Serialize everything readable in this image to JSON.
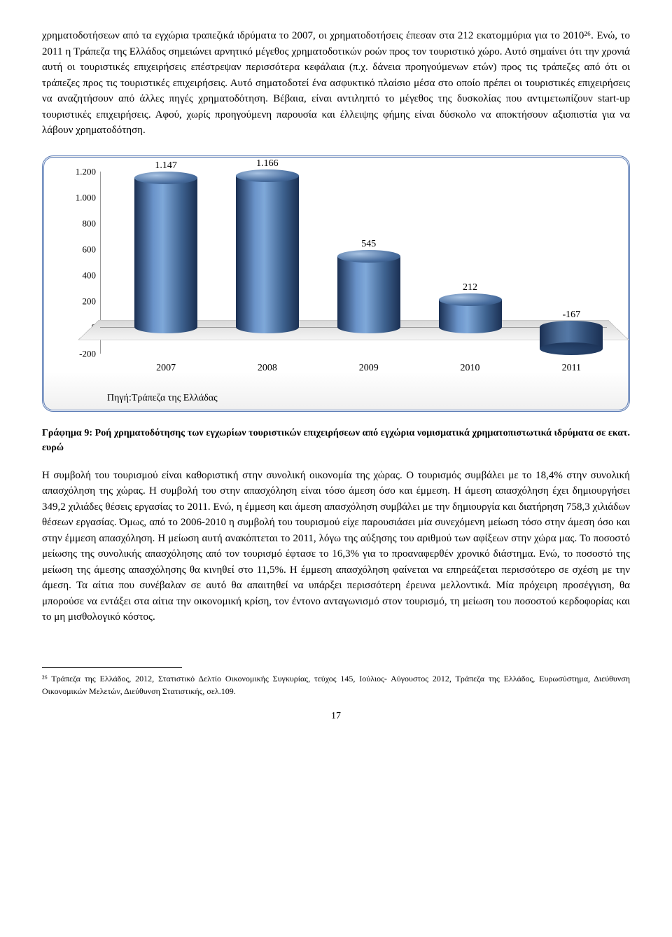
{
  "paragraph1": "χρηματοδοτήσεων από τα εγχώρια τραπεζικά ιδρύματα το 2007, οι χρηματοδοτήσεις έπεσαν στα 212 εκατομμύρια για το 2010²⁶. Ενώ, το 2011 η Τράπεζα της Ελλάδος σημειώνει αρνητικό μέγεθος χρηματοδοτικών ροών προς τον τουριστικό χώρο. Αυτό σημαίνει ότι την χρονιά αυτή οι τουριστικές επιχειρήσεις επέστρεψαν περισσότερα κεφάλαια (π.χ. δάνεια προηγούμενων ετών) προς τις τράπεζες από ότι οι τράπεζες προς τις τουριστικές επιχειρήσεις. Αυτό σηματοδοτεί ένα ασφυκτικό πλαίσιο μέσα στο οποίο πρέπει οι τουριστικές επιχειρήσεις να αναζητήσουν από άλλες πηγές χρηματοδότηση. Βέβαια, είναι αντιληπτό το μέγεθος της δυσκολίας που αντιμετωπίζουν start-up τουριστικές επιχειρήσεις. Αφού, χωρίς προηγούμενη παρουσία και έλλειψης φήμης είναι δύσκολο να αποκτήσουν αξιοπιστία για να λάβουν χρηματοδότηση.",
  "chart": {
    "y_ticks": [
      "1.200",
      "1.000",
      "800",
      "600",
      "400",
      "200",
      "0",
      "-200"
    ],
    "categories": [
      "2007",
      "2008",
      "2009",
      "2010",
      "2011"
    ],
    "values": [
      1147,
      1166,
      545,
      212,
      -167
    ],
    "labels": [
      "1.147",
      "1.166",
      "545",
      "212",
      "-167"
    ],
    "ymin": -200,
    "ymax": 1200,
    "source": "Πηγή:Τράπεζα της Ελλάδας",
    "bar_positions_pct": [
      13,
      33,
      53,
      73,
      93
    ]
  },
  "caption": "Γράφημα 9: Ροή χρηματοδότησης των εγχωρίων τουριστικών επιχειρήσεων από εγχώρια νομισματικά χρηματοπιστωτικά ιδρύματα σε εκατ. ευρώ",
  "paragraph2": "Η συμβολή του τουρισμού είναι καθοριστική στην συνολική οικονομία της χώρας. Ο τουρισμός συμβάλει με το 18,4% στην συνολική απασχόληση της χώρας. Η συμβολή του στην απασχόληση είναι τόσο άμεση όσο και έμμεση. Η άμεση απασχόληση έχει δημιουργήσει 349,2 χιλιάδες θέσεις εργασίας το 2011. Ενώ, η έμμεση και άμεση απασχόληση συμβάλει με την δημιουργία και διατήρηση 758,3 χιλιάδων θέσεων εργασίας. Όμως, από το 2006-2010 η συμβολή του τουρισμού είχε παρουσιάσει μία συνεχόμενη μείωση τόσο στην άμεση όσο και στην έμμεση απασχόληση. Η μείωση αυτή ανακόπτεται το 2011, λόγω της αύξησης του αριθμού των αφίξεων στην χώρα μας. Το ποσοστό μείωσης της συνολικής απασχόλησης από τον τουρισμό έφτασε το 16,3% για το προαναφερθέν χρονικό διάστημα. Ενώ, το ποσοστό της μείωση της άμεσης απασχόλησης θα κινηθεί στο 11,5%. Η έμμεση απασχόληση φαίνεται να επηρεάζεται περισσότερο σε σχέση με την άμεση. Τα αίτια που συνέβαλαν σε αυτό θα απαιτηθεί να υπάρξει περισσότερη έρευνα μελλοντικά. Μία πρόχειρη προσέγγιση, θα μπορούσε να εντάξει στα αίτια την οικονομική κρίση, τον έντονο ανταγωνισμό στον τουρισμό, τη μείωση του ποσοστού κερδοφορίας και το μη μισθολογικό κόστος.",
  "footnote": "²⁶ Τράπεζα της Ελλάδος, 2012, Στατιστικό Δελτίο Οικονομικής Συγκυρίας, τεύχος 145, Ιούλιος- Αύγουστος 2012, Τράπεζα της Ελλάδος, Ευρωσύστημα, Διεύθυνση Οικονομικών Μελετών, Διεύθυνση Στατιστικής, σελ.109.",
  "page_num": "17"
}
